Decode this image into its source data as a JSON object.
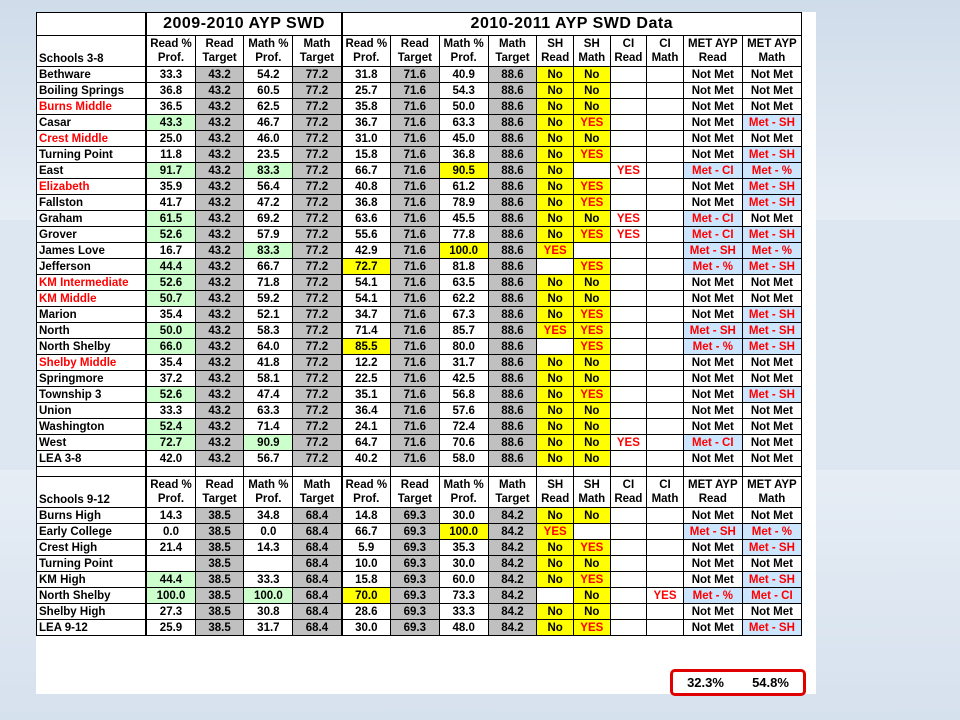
{
  "group1_title": "2009-2010 AYP SWD",
  "group2_title": "2010-2011 AYP SWD Data",
  "header1": {
    "name": "Schools 3-8",
    "cols": [
      "Read % Prof.",
      "Read Target",
      "Math % Prof.",
      "Math Target",
      "Read % Prof.",
      "Read Target",
      "Math % Prof.",
      "Math Target",
      "SH Read",
      "SH Math",
      "CI Read",
      "CI Math",
      "MET AYP Read",
      "MET AYP Math"
    ]
  },
  "header2": {
    "name": "Schools 9-12",
    "cols": [
      "Read % Prof.",
      "Read Target",
      "Math % Prof.",
      "Math Target",
      "Read % Prof.",
      "Read Target",
      "Math % Prof.",
      "Math Target",
      "SH Read",
      "SH Math",
      "CI Read",
      "CI Math",
      "MET AYP Read",
      "MET AYP Math"
    ]
  },
  "rows_3_8": [
    {
      "name": "Bethware",
      "v": [
        "33.3",
        "43.2",
        "54.2",
        "77.2",
        "31.8",
        "71.6",
        "40.9",
        "88.6",
        "No",
        "No",
        "",
        "",
        "Not Met",
        "Not Met"
      ]
    },
    {
      "name": "Boiling Springs",
      "v": [
        "36.8",
        "43.2",
        "60.5",
        "77.2",
        "25.7",
        "71.6",
        "54.3",
        "88.6",
        "No",
        "No",
        "",
        "",
        "Not Met",
        "Not Met"
      ]
    },
    {
      "name": "Burns Middle",
      "red": true,
      "v": [
        "36.5",
        "43.2",
        "62.5",
        "77.2",
        "35.8",
        "71.6",
        "50.0",
        "88.6",
        "No",
        "No",
        "",
        "",
        "Not Met",
        "Not Met"
      ]
    },
    {
      "name": "Casar",
      "v": [
        "43.3",
        "43.2",
        "46.7",
        "77.2",
        "36.7",
        "71.6",
        "63.3",
        "88.6",
        "No",
        "YES",
        "",
        "",
        "Not Met",
        "Met - SH"
      ]
    },
    {
      "name": "Crest Middle",
      "red": true,
      "v": [
        "25.0",
        "43.2",
        "46.0",
        "77.2",
        "31.0",
        "71.6",
        "45.0",
        "88.6",
        "No",
        "No",
        "",
        "",
        "Not Met",
        "Not Met"
      ]
    },
    {
      "name": "Turning Point",
      "v": [
        "11.8",
        "43.2",
        "23.5",
        "77.2",
        "15.8",
        "71.6",
        "36.8",
        "88.6",
        "No",
        "YES",
        "",
        "",
        "Not Met",
        "Met - SH"
      ]
    },
    {
      "name": "East",
      "v": [
        "91.7",
        "43.2",
        "83.3",
        "77.2",
        "66.7",
        "71.6",
        "90.5",
        "88.6",
        "No",
        "",
        "YES",
        "",
        "Met - CI",
        "Met - %"
      ]
    },
    {
      "name": "Elizabeth",
      "red": true,
      "v": [
        "35.9",
        "43.2",
        "56.4",
        "77.2",
        "40.8",
        "71.6",
        "61.2",
        "88.6",
        "No",
        "YES",
        "",
        "",
        "Not Met",
        "Met - SH"
      ]
    },
    {
      "name": "Fallston",
      "v": [
        "41.7",
        "43.2",
        "47.2",
        "77.2",
        "36.8",
        "71.6",
        "78.9",
        "88.6",
        "No",
        "YES",
        "",
        "",
        "Not Met",
        "Met - SH"
      ]
    },
    {
      "name": "Graham",
      "v": [
        "61.5",
        "43.2",
        "69.2",
        "77.2",
        "63.6",
        "71.6",
        "45.5",
        "88.6",
        "No",
        "No",
        "YES",
        "",
        "Met - CI",
        "Not Met"
      ]
    },
    {
      "name": "Grover",
      "v": [
        "52.6",
        "43.2",
        "57.9",
        "77.2",
        "55.6",
        "71.6",
        "77.8",
        "88.6",
        "No",
        "YES",
        "YES",
        "",
        "Met - CI",
        "Met - SH"
      ]
    },
    {
      "name": "James Love",
      "v": [
        "16.7",
        "43.2",
        "83.3",
        "77.2",
        "42.9",
        "71.6",
        "100.0",
        "88.6",
        "YES",
        "",
        "",
        "",
        "Met - SH",
        "Met - %"
      ]
    },
    {
      "name": "Jefferson",
      "v": [
        "44.4",
        "43.2",
        "66.7",
        "77.2",
        "72.7",
        "71.6",
        "81.8",
        "88.6",
        "",
        "YES",
        "",
        "",
        "Met - %",
        "Met - SH"
      ]
    },
    {
      "name": "KM Intermediate",
      "red": true,
      "v": [
        "52.6",
        "43.2",
        "71.8",
        "77.2",
        "54.1",
        "71.6",
        "63.5",
        "88.6",
        "No",
        "No",
        "",
        "",
        "Not Met",
        "Not Met"
      ]
    },
    {
      "name": "KM Middle",
      "red": true,
      "v": [
        "50.7",
        "43.2",
        "59.2",
        "77.2",
        "54.1",
        "71.6",
        "62.2",
        "88.6",
        "No",
        "No",
        "",
        "",
        "Not Met",
        "Not Met"
      ]
    },
    {
      "name": "Marion",
      "v": [
        "35.4",
        "43.2",
        "52.1",
        "77.2",
        "34.7",
        "71.6",
        "67.3",
        "88.6",
        "No",
        "YES",
        "",
        "",
        "Not Met",
        "Met - SH"
      ]
    },
    {
      "name": "North",
      "v": [
        "50.0",
        "43.2",
        "58.3",
        "77.2",
        "71.4",
        "71.6",
        "85.7",
        "88.6",
        "YES",
        "YES",
        "",
        "",
        "Met - SH",
        "Met - SH"
      ]
    },
    {
      "name": "North Shelby",
      "v": [
        "66.0",
        "43.2",
        "64.0",
        "77.2",
        "85.5",
        "71.6",
        "80.0",
        "88.6",
        "",
        "YES",
        "",
        "",
        "Met - %",
        "Met - SH"
      ]
    },
    {
      "name": "Shelby Middle",
      "red": true,
      "v": [
        "35.4",
        "43.2",
        "41.8",
        "77.2",
        "12.2",
        "71.6",
        "31.7",
        "88.6",
        "No",
        "No",
        "",
        "",
        "Not Met",
        "Not Met"
      ]
    },
    {
      "name": "Springmore",
      "v": [
        "37.2",
        "43.2",
        "58.1",
        "77.2",
        "22.5",
        "71.6",
        "42.5",
        "88.6",
        "No",
        "No",
        "",
        "",
        "Not Met",
        "Not Met"
      ]
    },
    {
      "name": "Township 3",
      "v": [
        "52.6",
        "43.2",
        "47.4",
        "77.2",
        "35.1",
        "71.6",
        "56.8",
        "88.6",
        "No",
        "YES",
        "",
        "",
        "Not Met",
        "Met - SH"
      ]
    },
    {
      "name": "Union",
      "v": [
        "33.3",
        "43.2",
        "63.3",
        "77.2",
        "36.4",
        "71.6",
        "57.6",
        "88.6",
        "No",
        "No",
        "",
        "",
        "Not Met",
        "Not Met"
      ]
    },
    {
      "name": "Washington",
      "v": [
        "52.4",
        "43.2",
        "71.4",
        "77.2",
        "24.1",
        "71.6",
        "72.4",
        "88.6",
        "No",
        "No",
        "",
        "",
        "Not Met",
        "Not Met"
      ]
    },
    {
      "name": "West",
      "v": [
        "72.7",
        "43.2",
        "90.9",
        "77.2",
        "64.7",
        "71.6",
        "70.6",
        "88.6",
        "No",
        "No",
        "YES",
        "",
        "Met - CI",
        "Not Met"
      ]
    },
    {
      "name": "LEA 3-8",
      "v": [
        "42.0",
        "43.2",
        "56.7",
        "77.2",
        "40.2",
        "71.6",
        "58.0",
        "88.6",
        "No",
        "No",
        "",
        "",
        "Not Met",
        "Not Met"
      ]
    }
  ],
  "rows_9_12": [
    {
      "name": "Burns High",
      "v": [
        "14.3",
        "38.5",
        "34.8",
        "68.4",
        "14.8",
        "69.3",
        "30.0",
        "84.2",
        "No",
        "No",
        "",
        "",
        "Not Met",
        "Not Met"
      ]
    },
    {
      "name": "Early College",
      "v": [
        "0.0",
        "38.5",
        "0.0",
        "68.4",
        "66.7",
        "69.3",
        "100.0",
        "84.2",
        "YES",
        "",
        "",
        "",
        "Met - SH",
        "Met - %"
      ]
    },
    {
      "name": "Crest High",
      "v": [
        "21.4",
        "38.5",
        "14.3",
        "68.4",
        "5.9",
        "69.3",
        "35.3",
        "84.2",
        "No",
        "YES",
        "",
        "",
        "Not Met",
        "Met - SH"
      ]
    },
    {
      "name": "Turning Point",
      "v": [
        "",
        "38.5",
        "",
        "68.4",
        "10.0",
        "69.3",
        "30.0",
        "84.2",
        "No",
        "No",
        "",
        "",
        "Not Met",
        "Not Met"
      ]
    },
    {
      "name": "KM High",
      "v": [
        "44.4",
        "38.5",
        "33.3",
        "68.4",
        "15.8",
        "69.3",
        "60.0",
        "84.2",
        "No",
        "YES",
        "",
        "",
        "Not Met",
        "Met - SH"
      ]
    },
    {
      "name": "North Shelby",
      "v": [
        "100.0",
        "38.5",
        "100.0",
        "68.4",
        "70.0",
        "69.3",
        "73.3",
        "84.2",
        "",
        "No",
        "",
        "YES",
        "Met - %",
        "Met - CI"
      ]
    },
    {
      "name": "Shelby High",
      "v": [
        "27.3",
        "38.5",
        "30.8",
        "68.4",
        "28.6",
        "69.3",
        "33.3",
        "84.2",
        "No",
        "No",
        "",
        "",
        "Not Met",
        "Not Met"
      ]
    },
    {
      "name": "LEA 9-12",
      "v": [
        "25.9",
        "38.5",
        "31.7",
        "68.4",
        "30.0",
        "69.3",
        "48.0",
        "84.2",
        "No",
        "YES",
        "",
        "",
        "Not Met",
        "Met - SH"
      ]
    }
  ],
  "totals": {
    "read": "32.3%",
    "math": "54.8%"
  }
}
